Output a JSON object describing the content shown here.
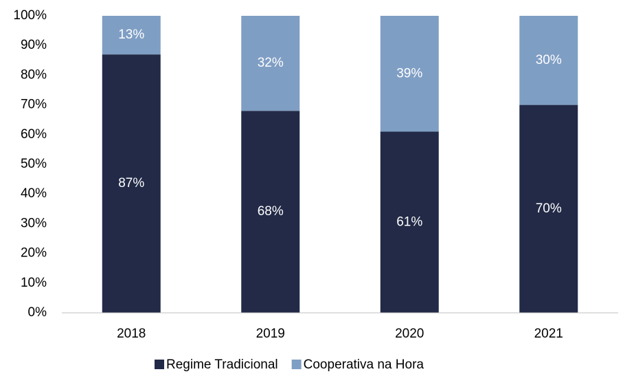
{
  "chart_data": {
    "type": "stacked_bar",
    "categories": [
      "2018",
      "2019",
      "2020",
      "2021"
    ],
    "series": [
      {
        "name": "Regime Tradicional",
        "color": "#222a47",
        "values": [
          87,
          68,
          61,
          70
        ],
        "value_labels": [
          "87%",
          "68%",
          "61%",
          "70%"
        ]
      },
      {
        "name": "Cooperativa na Hora",
        "color": "#7f9ec4",
        "values": [
          13,
          32,
          39,
          30
        ],
        "value_labels": [
          "13%",
          "32%",
          "39%",
          "30%"
        ]
      }
    ],
    "ylim": [
      0,
      100
    ],
    "yticks": [
      {
        "value": 0,
        "label": "0%"
      },
      {
        "value": 10,
        "label": "10%"
      },
      {
        "value": 20,
        "label": "20%"
      },
      {
        "value": 30,
        "label": "30%"
      },
      {
        "value": 40,
        "label": "40%"
      },
      {
        "value": 50,
        "label": "50%"
      },
      {
        "value": 60,
        "label": "60%"
      },
      {
        "value": 70,
        "label": "70%"
      },
      {
        "value": 80,
        "label": "80%"
      },
      {
        "value": 90,
        "label": "90%"
      },
      {
        "value": 100,
        "label": "100%"
      }
    ],
    "legend": "bottom"
  }
}
